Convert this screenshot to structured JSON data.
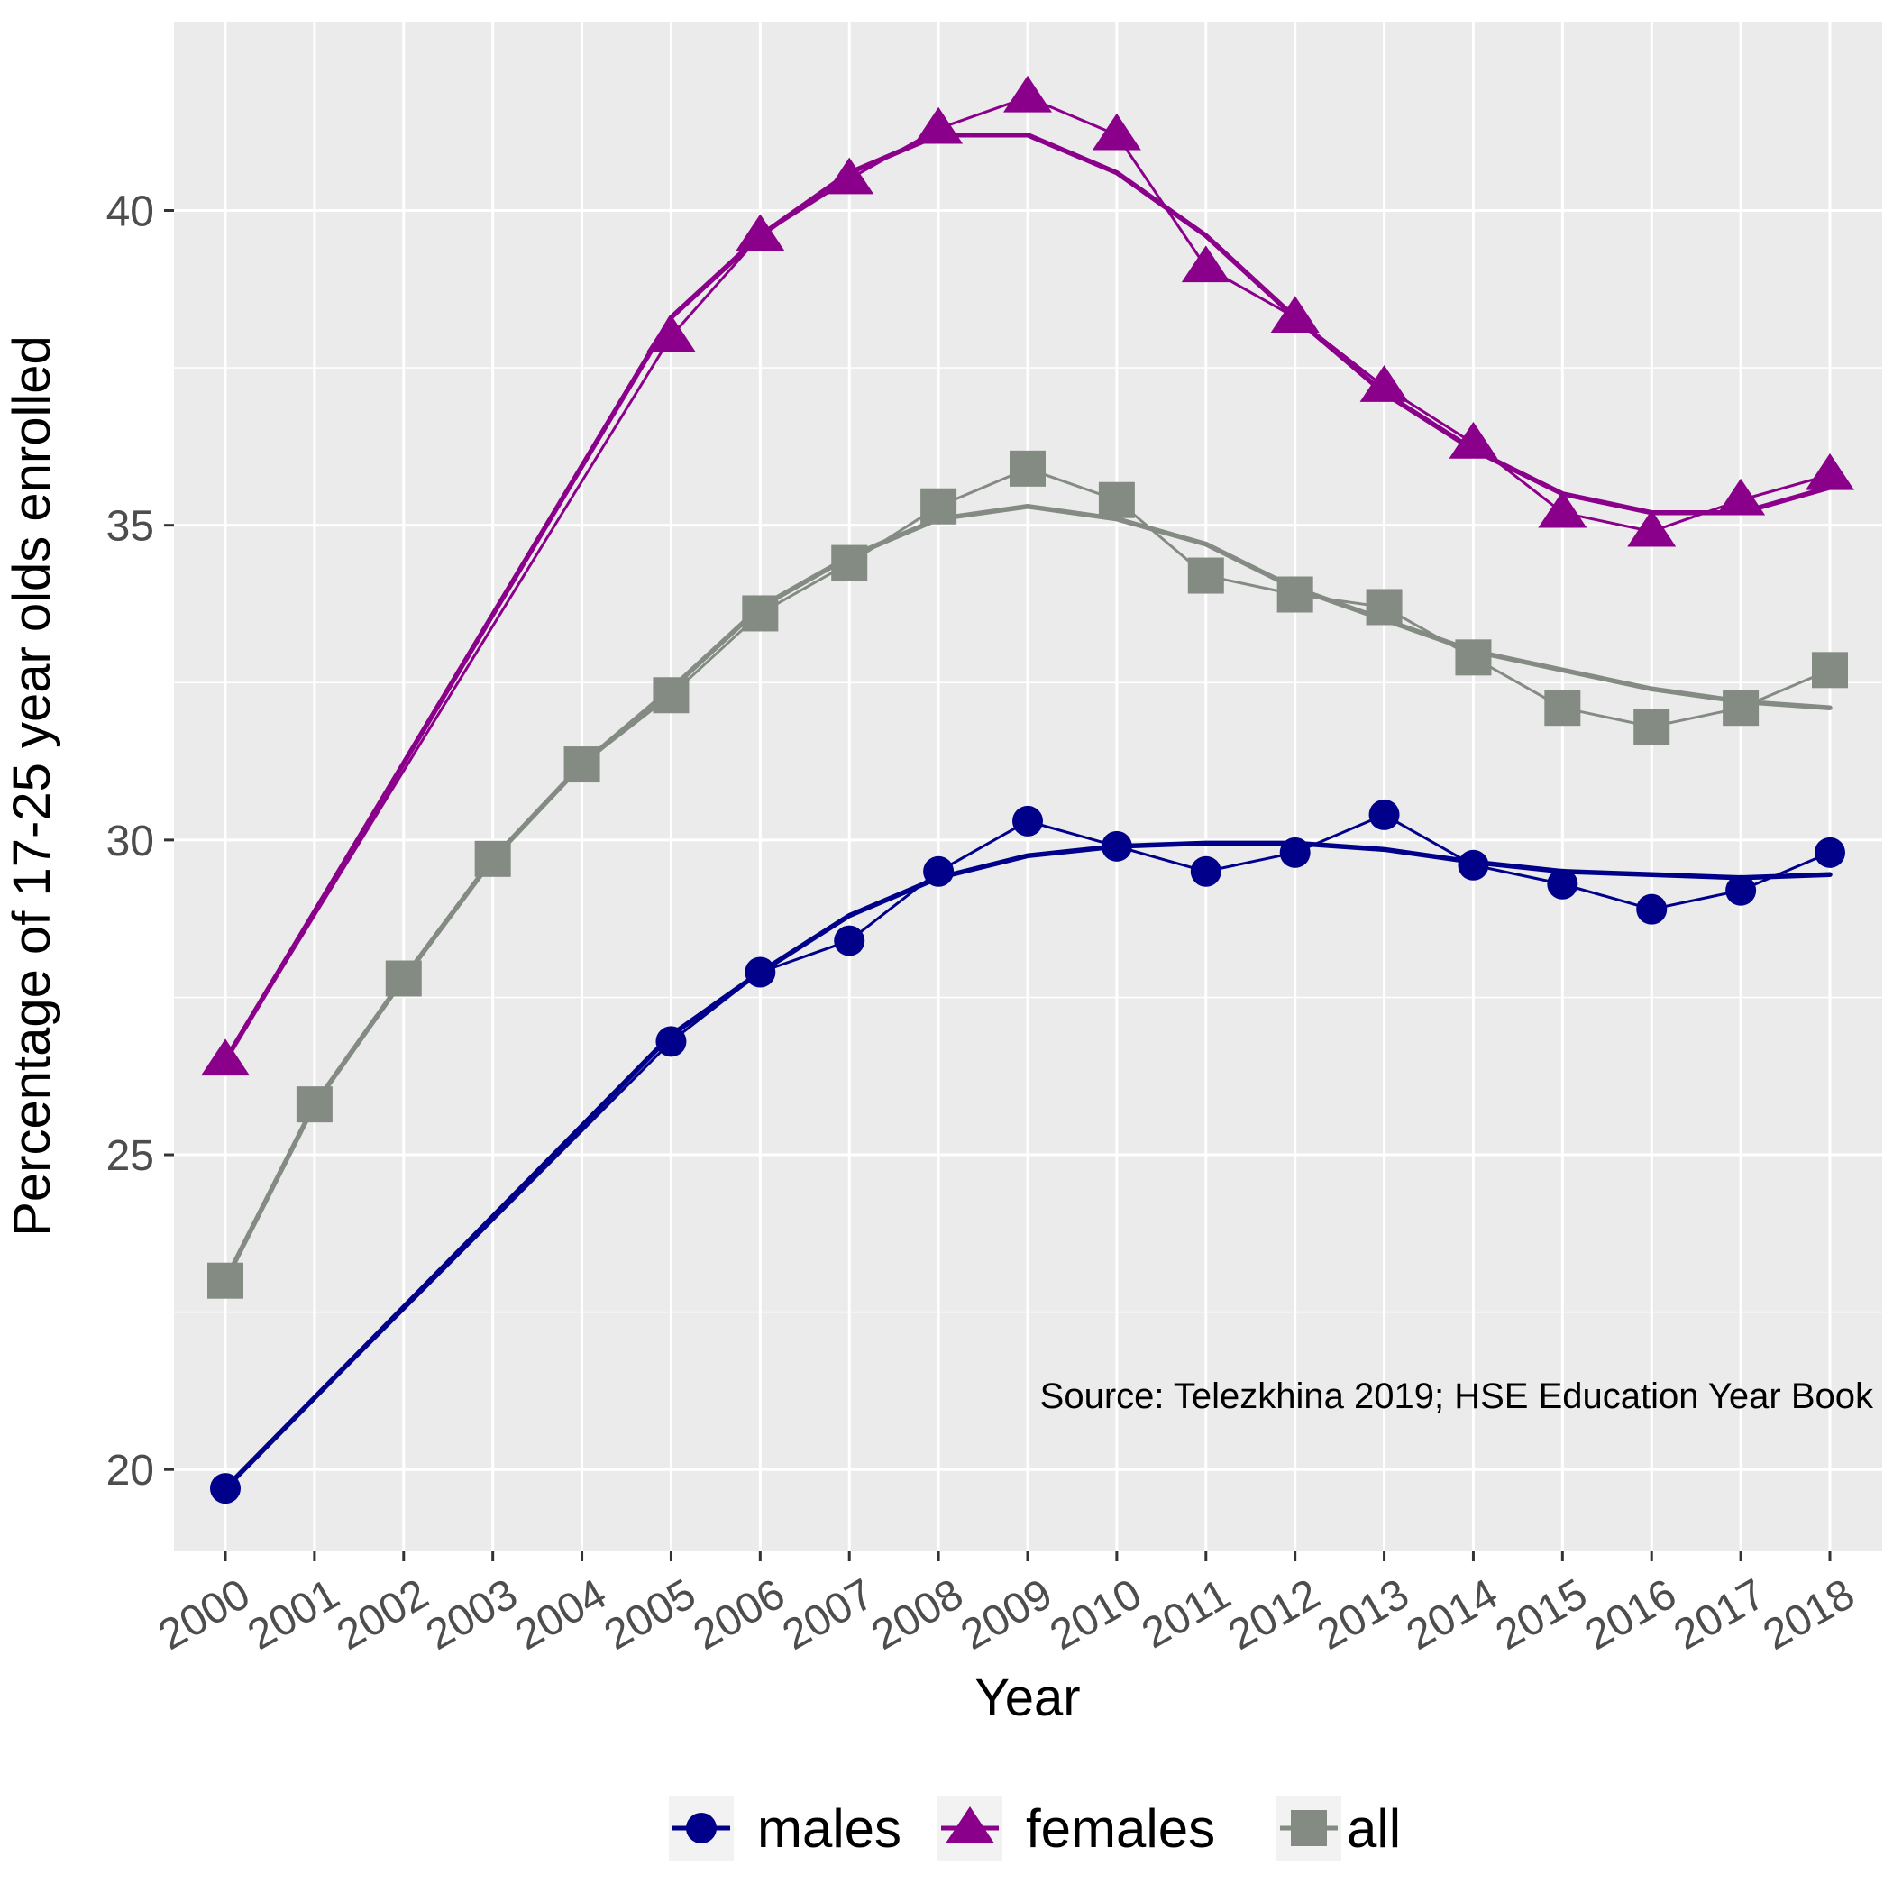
{
  "chart_data": {
    "type": "line",
    "xlabel": "Year",
    "ylabel": "Percentage of 17-25 year olds enrolled",
    "annotation": "Source: Telezkhina 2019; HSE Education Year Book",
    "ylim": [
      18.7,
      43.0
    ],
    "y_ticks": [
      20,
      25,
      30,
      35,
      40
    ],
    "y_tick_labels": [
      "20",
      "25",
      "30",
      "35",
      "40"
    ],
    "x_ticks": [
      "2000",
      "2001",
      "2002",
      "2003",
      "2004",
      "2005",
      "2006",
      "2007",
      "2008",
      "2009",
      "2010",
      "2011",
      "2012",
      "2013",
      "2014",
      "2015",
      "2016",
      "2017",
      "2018"
    ],
    "grid": true,
    "legend_position": "bottom",
    "series": [
      {
        "name": "males",
        "color": "#00008b",
        "marker": "circle",
        "x": [
          2000,
          2005,
          2006,
          2007,
          2008,
          2009,
          2010,
          2011,
          2012,
          2013,
          2014,
          2015,
          2016,
          2017,
          2018
        ],
        "values": [
          19.7,
          26.8,
          27.9,
          28.4,
          29.5,
          30.3,
          29.9,
          29.5,
          29.8,
          30.4,
          29.6,
          29.3,
          28.9,
          29.2,
          29.8
        ],
        "smooth_x": [
          2000,
          2005,
          2006,
          2007,
          2008,
          2009,
          2010,
          2011,
          2012,
          2013,
          2014,
          2015,
          2016,
          2017,
          2018
        ],
        "smooth_values": [
          19.7,
          26.9,
          27.9,
          28.8,
          29.4,
          29.75,
          29.9,
          29.95,
          29.95,
          29.85,
          29.65,
          29.5,
          29.45,
          29.4,
          29.45
        ]
      },
      {
        "name": "females",
        "color": "#8b008b",
        "marker": "triangle",
        "x": [
          2000,
          2005,
          2006,
          2007,
          2008,
          2009,
          2010,
          2011,
          2012,
          2013,
          2014,
          2015,
          2016,
          2017,
          2018
        ],
        "values": [
          26.5,
          38.0,
          39.6,
          40.5,
          41.3,
          41.8,
          41.2,
          39.1,
          38.3,
          37.2,
          36.3,
          35.2,
          34.9,
          35.4,
          35.8
        ],
        "smooth_x": [
          2000,
          2005,
          2006,
          2007,
          2008,
          2009,
          2010,
          2011,
          2012,
          2013,
          2014,
          2015,
          2016,
          2017,
          2018
        ],
        "smooth_values": [
          26.5,
          38.3,
          39.6,
          40.6,
          41.2,
          41.2,
          40.6,
          39.6,
          38.3,
          37.1,
          36.2,
          35.5,
          35.2,
          35.2,
          35.6
        ]
      },
      {
        "name": "all",
        "color": "#838b83",
        "marker": "square",
        "x": [
          2000,
          2001,
          2002,
          2003,
          2004,
          2005,
          2006,
          2007,
          2008,
          2009,
          2010,
          2011,
          2012,
          2013,
          2014,
          2015,
          2016,
          2017,
          2018
        ],
        "values": [
          23.0,
          25.8,
          27.8,
          29.7,
          31.2,
          32.3,
          33.6,
          34.4,
          35.3,
          35.9,
          35.4,
          34.2,
          33.9,
          33.7,
          32.9,
          32.1,
          31.8,
          32.1,
          32.7
        ],
        "smooth_x": [
          2000,
          2001,
          2002,
          2003,
          2004,
          2005,
          2006,
          2007,
          2008,
          2009,
          2010,
          2011,
          2012,
          2013,
          2014,
          2015,
          2016,
          2017,
          2018
        ],
        "smooth_values": [
          23.0,
          25.8,
          27.8,
          29.7,
          31.2,
          32.4,
          33.7,
          34.5,
          35.1,
          35.3,
          35.1,
          34.7,
          34.0,
          33.5,
          33.0,
          32.7,
          32.4,
          32.2,
          32.1
        ]
      }
    ]
  }
}
